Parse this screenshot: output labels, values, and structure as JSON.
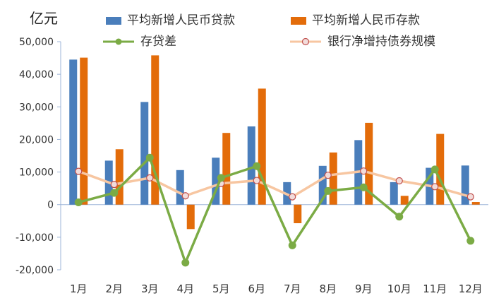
{
  "chart_data": {
    "type": "bar",
    "unit_label": "亿元",
    "categories": [
      "1月",
      "2月",
      "3月",
      "4月",
      "5月",
      "6月",
      "7月",
      "8月",
      "9月",
      "10月",
      "11月",
      "12月"
    ],
    "ylim": [
      -20000,
      50000
    ],
    "yticks": [
      -20000,
      -10000,
      0,
      10000,
      20000,
      30000,
      40000,
      50000
    ],
    "ytick_labels": [
      "-20,000",
      "-10,000",
      "0",
      "10,000",
      "20,000",
      "30,000",
      "40,000",
      "50,000"
    ],
    "grid": false,
    "legend_position": "top",
    "series": [
      {
        "name": "平均新增人民币贷款",
        "type": "bar",
        "color": "#4a7ebb",
        "values": [
          44500,
          13500,
          31500,
          10600,
          14400,
          24000,
          6900,
          11900,
          19800,
          6900,
          11300,
          12000
        ]
      },
      {
        "name": "平均新增人民币存款",
        "type": "bar",
        "color": "#e36c0a",
        "values": [
          45100,
          17000,
          45800,
          -7500,
          22000,
          35600,
          -5700,
          16000,
          25100,
          2700,
          21700,
          800
        ]
      },
      {
        "name": "存贷差",
        "type": "line",
        "color": "#7bab45",
        "values": [
          700,
          3600,
          14400,
          -17800,
          8200,
          11800,
          -12500,
          4200,
          5300,
          -3700,
          10800,
          -11100
        ]
      },
      {
        "name": "银行净增持债券规模",
        "type": "line",
        "color": "#f7c6a1",
        "marker_edge": "#c0504d",
        "values": [
          10200,
          6200,
          8200,
          2700,
          6500,
          7400,
          2400,
          9000,
          10300,
          7300,
          5500,
          2400
        ]
      }
    ]
  }
}
